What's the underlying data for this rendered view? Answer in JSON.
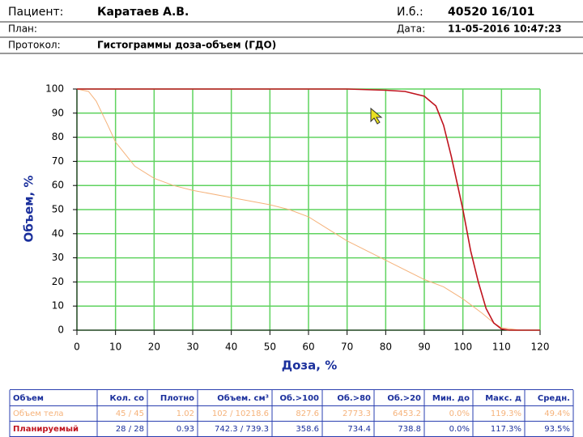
{
  "header": {
    "rows": [
      [
        {
          "label": "Пациент:",
          "value": "Каратаев А.В."
        },
        {
          "label": "И.б.:",
          "value": "40520 16/101"
        }
      ],
      [
        {
          "label": "План:",
          "value": ""
        },
        {
          "label": "Дата:",
          "value": "11-05-2016 10:47:23"
        }
      ],
      [
        {
          "label": "Протокол:",
          "value": "Гистограммы доза-объем (ГДО)"
        }
      ]
    ]
  },
  "chart_data": {
    "type": "line",
    "x_label": "Доза, %",
    "y_label": "Объем, %",
    "xlim": [
      0,
      120
    ],
    "xticks": [
      0,
      10,
      20,
      30,
      40,
      50,
      60,
      70,
      80,
      90,
      100,
      110,
      120
    ],
    "ylim": [
      0,
      100
    ],
    "yticks": [
      0,
      10,
      20,
      30,
      40,
      50,
      60,
      70,
      80,
      90,
      100
    ],
    "grid": true,
    "grid_color": "#5fd35f",
    "series": [
      {
        "color": "#f5b27a",
        "x": [
          0,
          3,
          5,
          8,
          10,
          13,
          15,
          20,
          25,
          30,
          40,
          50,
          55,
          60,
          65,
          70,
          80,
          90,
          95,
          100,
          105,
          108,
          110,
          115,
          120
        ],
        "values": [
          100,
          99,
          95,
          85,
          78,
          72,
          68,
          63,
          60,
          58,
          55,
          52,
          50,
          47,
          42,
          37,
          29,
          21,
          18,
          13,
          7,
          3,
          1,
          0,
          0
        ]
      },
      {
        "color": "#c0141e",
        "x": [
          0,
          70,
          80,
          85,
          90,
          93,
          95,
          97,
          100,
          102,
          104,
          106,
          108,
          110,
          112,
          120
        ],
        "values": [
          100,
          100,
          99.5,
          99,
          97,
          93,
          85,
          72,
          50,
          33,
          20,
          9,
          3,
          0.5,
          0,
          0
        ]
      }
    ]
  },
  "table": {
    "header": [
      "Объем",
      "Кол. со",
      "Плотно",
      "Объем. см³",
      "Об.>100",
      "Об.>80",
      "Об.>20",
      "Мин. до",
      "Макс. д",
      "Средн."
    ],
    "rows": [
      [
        "Объем тела",
        "45 / 45",
        "1.02",
        "102 / 10218.6",
        "827.6",
        "2773.3",
        "6453.2",
        "0.0%",
        "119.3%",
        "49.4%"
      ],
      [
        "Планируемый",
        "28 / 28",
        "0.93",
        "742.3 / 739.3",
        "358.6",
        "734.4",
        "738.8",
        "0.0%",
        "117.3%",
        "93.5%"
      ]
    ]
  }
}
